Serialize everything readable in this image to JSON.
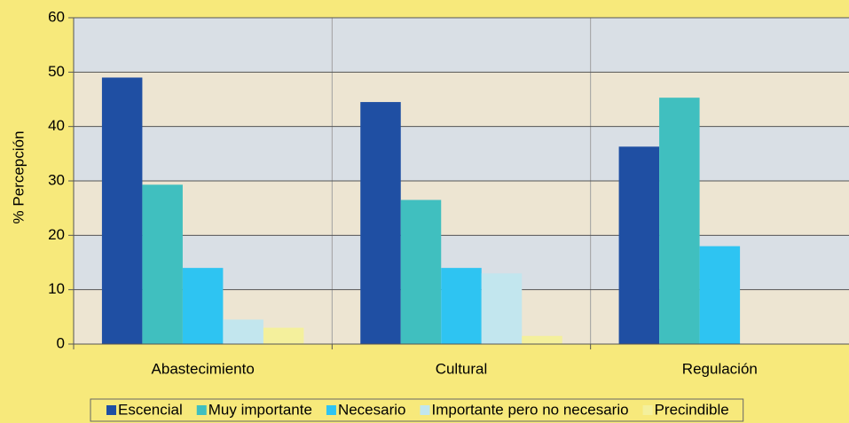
{
  "chart_data": {
    "type": "bar",
    "y_label": "% Percepción",
    "categories": [
      "Abastecimiento",
      "Cultural",
      "Regulación"
    ],
    "series": [
      {
        "name": "Escencial",
        "color": "#1f4fa3",
        "values": [
          49,
          44.5,
          36.3
        ]
      },
      {
        "name": "Muy importante",
        "color": "#40bfbf",
        "values": [
          29.3,
          26.5,
          45.3
        ]
      },
      {
        "name": "Necesario",
        "color": "#2ec4f2",
        "values": [
          14,
          14,
          18
        ]
      },
      {
        "name": "Importante pero no necesario",
        "color": "#c2e6ee",
        "values": [
          4.5,
          13,
          0
        ]
      },
      {
        "name": "Precindible",
        "color": "#f4f09c",
        "values": [
          3,
          1.5,
          0
        ]
      }
    ],
    "ylim": [
      0,
      60
    ],
    "yticks": [
      0,
      10,
      20,
      30,
      40,
      50,
      60
    ],
    "grid": true,
    "legend": "bottom"
  }
}
